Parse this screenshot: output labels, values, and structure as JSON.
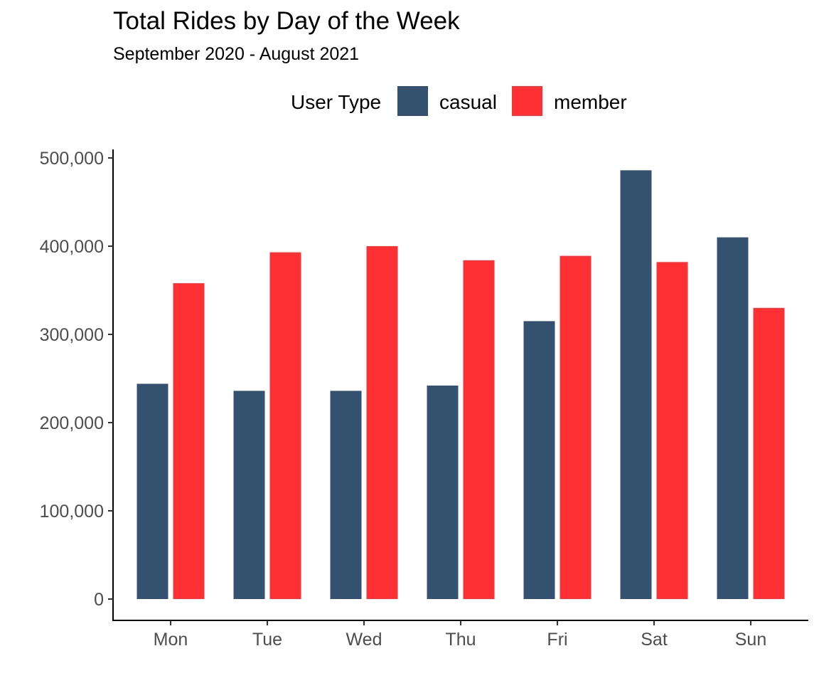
{
  "chart_data": {
    "type": "bar",
    "title": "Total Rides by Day of the Week",
    "subtitle": "September 2020 - August 2021",
    "xlabel": "",
    "ylabel": "",
    "categories": [
      "Mon",
      "Tue",
      "Wed",
      "Thu",
      "Fri",
      "Sat",
      "Sun"
    ],
    "series": [
      {
        "name": "casual",
        "color": "#34516f",
        "values": [
          244000,
          236000,
          236000,
          242000,
          315000,
          486000,
          410000
        ]
      },
      {
        "name": "member",
        "color": "#ff3033",
        "values": [
          358000,
          393000,
          400000,
          384000,
          389000,
          382000,
          330000
        ]
      }
    ],
    "ylim": [
      0,
      500000
    ],
    "yticks": [
      0,
      100000,
      200000,
      300000,
      400000,
      500000
    ],
    "ytick_labels": [
      "0",
      "100,000",
      "200,000",
      "300,000",
      "400,000",
      "500,000"
    ],
    "legend": {
      "title": "User Type",
      "position": "top"
    },
    "grid": false
  }
}
